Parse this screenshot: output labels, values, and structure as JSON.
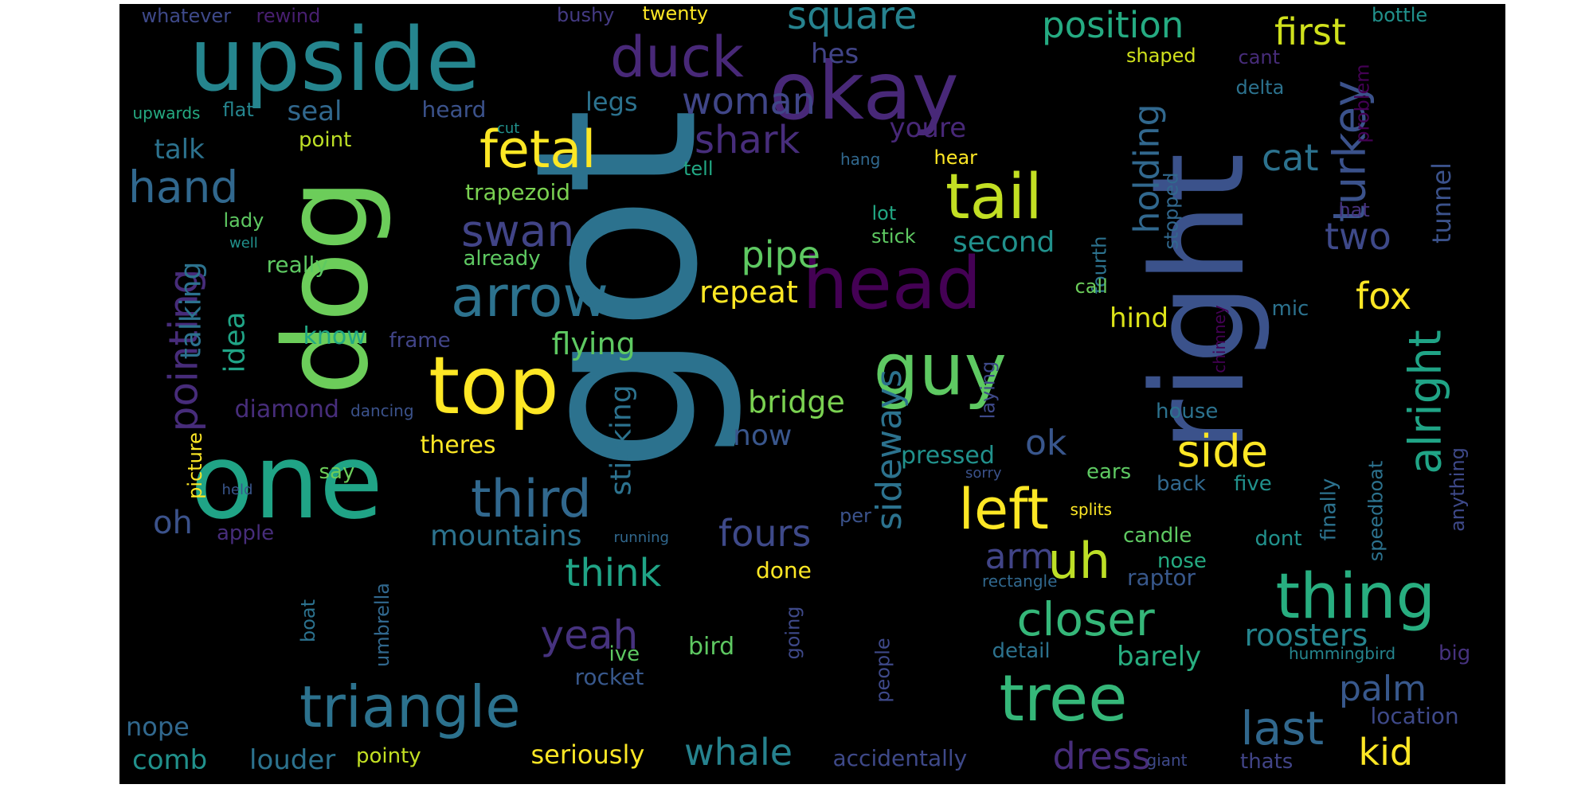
{
  "words": [
    {
      "text": "got",
      "color": "#2c728e"
    },
    {
      "text": "right",
      "color": "#3b528b"
    },
    {
      "text": "dog",
      "color": "#6ccd5a"
    },
    {
      "text": "one",
      "color": "#20a486"
    },
    {
      "text": "upside",
      "color": "#25858e"
    },
    {
      "text": "okay",
      "color": "#482878"
    },
    {
      "text": "head",
      "color": "#440154"
    },
    {
      "text": "guy",
      "color": "#5ec962"
    },
    {
      "text": "top",
      "color": "#fde725"
    },
    {
      "text": "triangle",
      "color": "#2c728e"
    },
    {
      "text": "tree",
      "color": "#35b779"
    },
    {
      "text": "thing",
      "color": "#28ae80"
    },
    {
      "text": "tail",
      "color": "#c2df23"
    },
    {
      "text": "duck",
      "color": "#482878"
    },
    {
      "text": "arrow",
      "color": "#2c728e"
    },
    {
      "text": "third",
      "color": "#31688e"
    },
    {
      "text": "fetal",
      "color": "#fde725"
    },
    {
      "text": "left",
      "color": "#fde725"
    },
    {
      "text": "square",
      "color": "#26828e"
    },
    {
      "text": "position",
      "color": "#25ab82"
    },
    {
      "text": "first",
      "color": "#d0e11c"
    },
    {
      "text": "turkey",
      "color": "#3b528b"
    },
    {
      "text": "alright",
      "color": "#20a486"
    },
    {
      "text": "closer",
      "color": "#35b779"
    },
    {
      "text": "last",
      "color": "#31688e"
    },
    {
      "text": "uh",
      "color": "#bddf26"
    },
    {
      "text": "hand",
      "color": "#31688e"
    },
    {
      "text": "swan",
      "color": "#414487"
    },
    {
      "text": "side",
      "color": "#fde725"
    },
    {
      "text": "dress",
      "color": "#472d7b"
    },
    {
      "text": "whale",
      "color": "#26828e"
    },
    {
      "text": "pointing",
      "color": "#472c7a"
    },
    {
      "text": "shark",
      "color": "#472d7b"
    },
    {
      "text": "woman",
      "color": "#404688"
    },
    {
      "text": "holding",
      "color": "#31688e"
    },
    {
      "text": "sideways",
      "color": "#2c728e"
    },
    {
      "text": "pipe",
      "color": "#5ec962"
    },
    {
      "text": "fours",
      "color": "#3e4989"
    },
    {
      "text": "think",
      "color": "#20a486"
    },
    {
      "text": "yeah",
      "color": "#46327e"
    },
    {
      "text": "mountains",
      "color": "#2c728e"
    },
    {
      "text": "cat",
      "color": "#2c728e"
    },
    {
      "text": "fox",
      "color": "#fde725"
    },
    {
      "text": "two",
      "color": "#3e4989"
    },
    {
      "text": "kid",
      "color": "#fde725"
    },
    {
      "text": "palm",
      "color": "#38588c"
    },
    {
      "text": "roosters",
      "color": "#25858e"
    },
    {
      "text": "bridge",
      "color": "#7ad151"
    },
    {
      "text": "now",
      "color": "#39568c"
    },
    {
      "text": "arm",
      "color": "#414487"
    },
    {
      "text": "talking",
      "color": "#2c728e"
    },
    {
      "text": "ok",
      "color": "#39568c"
    },
    {
      "text": "oh",
      "color": "#3b528b"
    },
    {
      "text": "tunnel",
      "color": "#3b528b"
    },
    {
      "text": "flying",
      "color": "#5ec962"
    },
    {
      "text": "repeat",
      "color": "#fde725"
    },
    {
      "text": "idea",
      "color": "#20a486"
    },
    {
      "text": "second",
      "color": "#21918c"
    },
    {
      "text": "seal",
      "color": "#31688e"
    },
    {
      "text": "legs",
      "color": "#2c728e"
    },
    {
      "text": "talk",
      "color": "#2c728e"
    },
    {
      "text": "youre",
      "color": "#482878"
    },
    {
      "text": "hes",
      "color": "#414487"
    },
    {
      "text": "sticking",
      "color": "#2c728e"
    },
    {
      "text": "barely",
      "color": "#28ae80"
    },
    {
      "text": "hind",
      "color": "#dce319"
    },
    {
      "text": "comb",
      "color": "#21918c"
    },
    {
      "text": "louder",
      "color": "#2c728e"
    },
    {
      "text": "seriously",
      "color": "#fde725"
    },
    {
      "text": "nope",
      "color": "#31688e"
    },
    {
      "text": "big",
      "color": "#46327e"
    },
    {
      "text": "location",
      "color": "#3e4989"
    },
    {
      "text": "bottle",
      "color": "#21918c"
    },
    {
      "text": "problem",
      "color": "#440154"
    },
    {
      "text": "whatever",
      "color": "#3e4989"
    },
    {
      "text": "rewind",
      "color": "#481f70"
    },
    {
      "text": "bushy",
      "color": "#443a83"
    },
    {
      "text": "twenty",
      "color": "#fde725"
    },
    {
      "text": "shaped",
      "color": "#d0e11c"
    },
    {
      "text": "cant",
      "color": "#472c7a"
    },
    {
      "text": "delta",
      "color": "#2c728e"
    },
    {
      "text": "upwards",
      "color": "#25ab82"
    },
    {
      "text": "flat",
      "color": "#25858e"
    },
    {
      "text": "heard",
      "color": "#3b528b"
    },
    {
      "text": "cut",
      "color": "#21918c"
    },
    {
      "text": "point",
      "color": "#bddf26"
    },
    {
      "text": "hang",
      "color": "#31688e"
    },
    {
      "text": "hear",
      "color": "#fde725"
    },
    {
      "text": "tell",
      "color": "#22a884"
    },
    {
      "text": "trapezoid",
      "color": "#7ad151"
    },
    {
      "text": "lady",
      "color": "#5ec962"
    },
    {
      "text": "well",
      "color": "#21918c"
    },
    {
      "text": "already",
      "color": "#5ec962"
    },
    {
      "text": "really",
      "color": "#5ec962"
    },
    {
      "text": "lot",
      "color": "#22a884"
    },
    {
      "text": "stick",
      "color": "#5ec962"
    },
    {
      "text": "fourth",
      "color": "#2c728e"
    },
    {
      "text": "stopped",
      "color": "#31688e"
    },
    {
      "text": "hat",
      "color": "#46327e"
    },
    {
      "text": "call",
      "color": "#6ccd5a"
    },
    {
      "text": "mic",
      "color": "#2c728e"
    },
    {
      "text": "chimney",
      "color": "#440154"
    },
    {
      "text": "laying",
      "color": "#3e4989"
    },
    {
      "text": "know",
      "color": "#22a884"
    },
    {
      "text": "frame",
      "color": "#414487"
    },
    {
      "text": "diamond",
      "color": "#472d7b"
    },
    {
      "text": "dancing",
      "color": "#3b528b"
    },
    {
      "text": "picture",
      "color": "#fde725"
    },
    {
      "text": "theres",
      "color": "#fde725"
    },
    {
      "text": "say",
      "color": "#6ccd5a"
    },
    {
      "text": "held",
      "color": "#39568c"
    },
    {
      "text": "apple",
      "color": "#472d7b"
    },
    {
      "text": "running",
      "color": "#31688e"
    },
    {
      "text": "pressed",
      "color": "#21918c"
    },
    {
      "text": "sorry",
      "color": "#3b528b"
    },
    {
      "text": "ears",
      "color": "#5ec962"
    },
    {
      "text": "house",
      "color": "#2c728e"
    },
    {
      "text": "back",
      "color": "#31688e"
    },
    {
      "text": "five",
      "color": "#21918c"
    },
    {
      "text": "finally",
      "color": "#2c728e"
    },
    {
      "text": "speedboat",
      "color": "#2c728e"
    },
    {
      "text": "anything",
      "color": "#3e4989"
    },
    {
      "text": "per",
      "color": "#3b528b"
    },
    {
      "text": "splits",
      "color": "#fde725"
    },
    {
      "text": "candle",
      "color": "#5ec962"
    },
    {
      "text": "dont",
      "color": "#21918c"
    },
    {
      "text": "done",
      "color": "#fde725"
    },
    {
      "text": "nose",
      "color": "#25ab82"
    },
    {
      "text": "rectangle",
      "color": "#31688e"
    },
    {
      "text": "raptor",
      "color": "#38588c"
    },
    {
      "text": "umbrella",
      "color": "#31688e"
    },
    {
      "text": "boat",
      "color": "#2c728e"
    },
    {
      "text": "bird",
      "color": "#5ec962"
    },
    {
      "text": "going",
      "color": "#3e4989"
    },
    {
      "text": "people",
      "color": "#3e4989"
    },
    {
      "text": "detail",
      "color": "#2c728e"
    },
    {
      "text": "hummingbird",
      "color": "#25858e"
    },
    {
      "text": "ive",
      "color": "#5ec962"
    },
    {
      "text": "rocket",
      "color": "#38588c"
    },
    {
      "text": "pointy",
      "color": "#c2df23"
    },
    {
      "text": "accidentally",
      "color": "#3e4989"
    },
    {
      "text": "giant",
      "color": "#3e4989"
    },
    {
      "text": "thats",
      "color": "#414487"
    }
  ]
}
